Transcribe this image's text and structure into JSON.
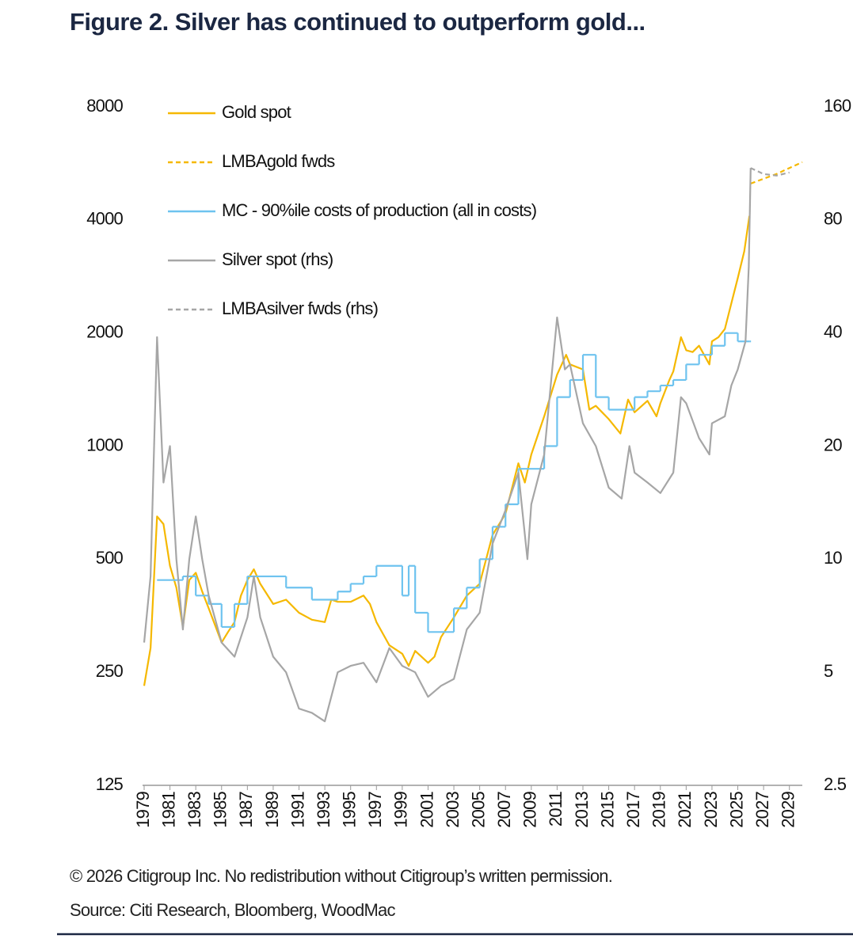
{
  "chart_data": {
    "type": "line",
    "title": "Figure 2. Silver has continued to outperform gold...",
    "log": true,
    "xlim": [
      1979,
      2030
    ],
    "xticks": [
      1979,
      1981,
      1983,
      1985,
      1987,
      1989,
      1991,
      1993,
      1995,
      1997,
      1999,
      2001,
      2003,
      2005,
      2007,
      2009,
      2011,
      2013,
      2015,
      2017,
      2019,
      2021,
      2023,
      2025,
      2027,
      2029
    ],
    "ylim": [
      125,
      8000
    ],
    "yticks": [
      125,
      250,
      500,
      1000,
      2000,
      4000,
      8000
    ],
    "y2lim": [
      2.5,
      160
    ],
    "y2ticks": [
      2.5,
      5,
      10,
      20,
      40,
      80,
      160
    ],
    "series": [
      {
        "name": "Gold spot",
        "color": "#f5b800",
        "style": "solid",
        "x": [
          1979,
          1979.5,
          1980,
          1980.5,
          1981,
          1981.5,
          1982,
          1982.5,
          1983,
          1983.5,
          1984,
          1985,
          1985.5,
          1986,
          1986.5,
          1987,
          1987.5,
          1988,
          1989,
          1990,
          1991,
          1992,
          1993,
          1993.5,
          1994,
          1995,
          1996,
          1996.5,
          1997,
          1998,
          1999,
          1999.5,
          2000,
          2001,
          2001.5,
          2002,
          2003,
          2004,
          2005,
          2006,
          2007,
          2008,
          2008.5,
          2009,
          2010,
          2011,
          2011.7,
          2012,
          2013,
          2013.5,
          2014,
          2015,
          2015.9,
          2016.5,
          2017,
          2018,
          2018.7,
          2019,
          2019.7,
          2020,
          2020.6,
          2021,
          2021.5,
          2022,
          2022.8,
          2023,
          2023.5,
          2024,
          2024.5,
          2025,
          2025.5,
          2025.9
        ],
        "values": [
          230,
          290,
          650,
          620,
          480,
          420,
          330,
          440,
          460,
          410,
          370,
          300,
          320,
          340,
          400,
          440,
          470,
          430,
          380,
          390,
          360,
          345,
          340,
          390,
          385,
          385,
          400,
          380,
          340,
          295,
          280,
          260,
          285,
          265,
          275,
          310,
          350,
          400,
          430,
          580,
          660,
          900,
          800,
          950,
          1200,
          1550,
          1750,
          1650,
          1600,
          1250,
          1280,
          1180,
          1080,
          1330,
          1230,
          1320,
          1200,
          1300,
          1500,
          1580,
          1950,
          1800,
          1780,
          1850,
          1650,
          1900,
          1950,
          2050,
          2400,
          2800,
          3300,
          4100
        ]
      },
      {
        "name": "LMBAgold fwds",
        "color": "#f5b800",
        "style": "dashed",
        "x": [
          2026,
          2027,
          2028,
          2029,
          2030
        ],
        "values": [
          5000,
          5150,
          5300,
          5500,
          5700
        ]
      },
      {
        "name": "MC - 90%ile costs of production (all in costs)",
        "color": "#6ec3ef",
        "style": "step",
        "x": [
          1980,
          1982,
          1983,
          1984,
          1985,
          1986,
          1987,
          1990,
          1992,
          1994,
          1995,
          1996,
          1997,
          1999,
          1999.5,
          2000,
          2001,
          2003,
          2004,
          2005,
          2006,
          2007,
          2008,
          2010,
          2011,
          2012,
          2013,
          2014,
          2015,
          2017,
          2018,
          2019,
          2020,
          2021,
          2022,
          2023,
          2024,
          2025,
          2025.9
        ],
        "values": [
          440,
          450,
          400,
          380,
          330,
          380,
          450,
          420,
          390,
          410,
          430,
          450,
          480,
          400,
          480,
          360,
          320,
          370,
          420,
          500,
          610,
          700,
          870,
          1000,
          1350,
          1500,
          1750,
          1350,
          1250,
          1350,
          1400,
          1450,
          1500,
          1650,
          1750,
          1850,
          2000,
          1900,
          1900
        ]
      },
      {
        "name": "Silver spot (rhs)",
        "color": "#a6a6a6",
        "style": "solid",
        "axis": "y2",
        "x": [
          1979,
          1979.5,
          1980,
          1980.5,
          1981,
          1981.5,
          1982,
          1982.5,
          1983,
          1983.5,
          1984,
          1985,
          1986,
          1987,
          1987.5,
          1988,
          1989,
          1990,
          1991,
          1992,
          1993,
          1994,
          1995,
          1996,
          1997,
          1998,
          1999,
          2000,
          2001,
          2002,
          2003,
          2004,
          2005,
          2006,
          2007,
          2008,
          2008.7,
          2009,
          2010,
          2011,
          2011.6,
          2012,
          2013,
          2014,
          2015,
          2016,
          2016.6,
          2017,
          2018,
          2019,
          2020,
          2020.6,
          2021,
          2022,
          2022.8,
          2023,
          2024,
          2024.5,
          2025,
          2025.6,
          2025.85,
          2026
        ],
        "values": [
          6,
          9,
          39,
          16,
          20,
          10,
          6.5,
          10,
          13,
          10,
          8,
          6,
          5.5,
          7,
          9,
          7,
          5.5,
          5,
          4,
          3.9,
          3.7,
          5,
          5.2,
          5.3,
          4.7,
          5.8,
          5.2,
          5,
          4.3,
          4.6,
          4.8,
          6.5,
          7.2,
          11,
          13.5,
          17,
          10,
          14,
          19,
          44,
          32,
          33,
          23,
          20,
          15.5,
          14.5,
          20,
          17,
          16,
          15,
          17,
          27,
          26,
          21,
          19,
          23,
          24,
          29,
          32,
          38,
          60,
          110
        ]
      },
      {
        "name": "LMBAsilver fwds (rhs)",
        "color": "#a6a6a6",
        "style": "dashed",
        "axis": "y2",
        "x": [
          2026,
          2027,
          2028,
          2029
        ],
        "values": [
          110,
          106,
          105,
          107
        ]
      }
    ],
    "footnotes": [
      "© 2026 Citigroup Inc. No redistribution without Citigroup’s written permission.",
      "Source: Citi Research, Bloomberg, WoodMac"
    ]
  }
}
